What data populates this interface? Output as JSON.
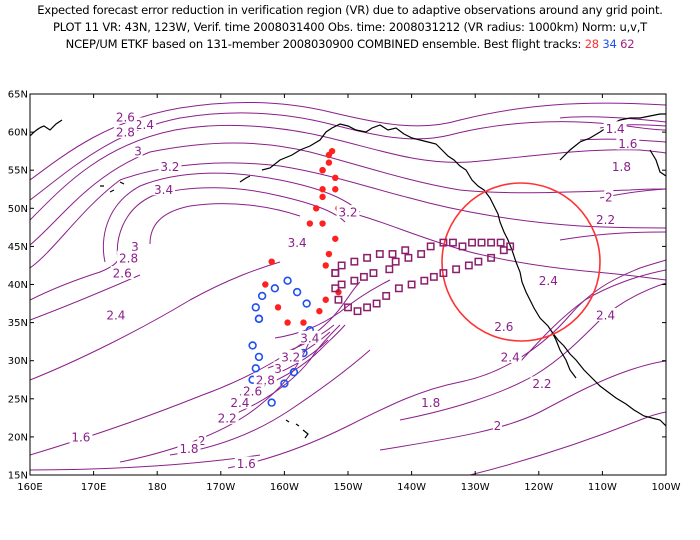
{
  "header": {
    "line1": "Expected forecast error reduction in verification region (VR) due to adaptive observations around any grid point.",
    "line2": "PLOT 11 VR: 43N, 123W, Verif. time 2008031400 Obs. time: 2008031212 (VR radius: 1000km) Norm: u,v,T",
    "line3_prefix": "NCEP/UM ETKF based on 131-member 2008030900 COMBINED ensemble.  Best flight tracks:",
    "track_red": "28",
    "track_blue": "34",
    "track_purple": "62"
  },
  "map": {
    "lon_min": 160,
    "lon_max": 260,
    "lat_min": 15,
    "lat_max": 65,
    "lat_labels": [
      "65N",
      "60N",
      "55N",
      "50N",
      "45N",
      "40N",
      "35N",
      "30N",
      "25N",
      "20N",
      "15N"
    ],
    "lon_labels": [
      "160E",
      "170E",
      "180",
      "170W",
      "160W",
      "150W",
      "140W",
      "130W",
      "120W",
      "110W",
      "100W"
    ],
    "colors": {
      "contour": "#8b1f8b",
      "vr_circle": "#ff3333",
      "red_track": "#ff2020",
      "blue_track": "#2050f0",
      "purple_track": "#8b1f6b",
      "land": "#000000"
    },
    "verification_region": {
      "center_lat": 43,
      "center_lon": 237,
      "radius_km": 1000
    },
    "contour_labels": [
      {
        "text": "2.4",
        "lon": 178,
        "lat": 61
      },
      {
        "text": "2.6",
        "lon": 175,
        "lat": 62
      },
      {
        "text": "2.8",
        "lon": 175,
        "lat": 60
      },
      {
        "text": "3",
        "lon": 177,
        "lat": 57.5
      },
      {
        "text": "3.2",
        "lon": 182,
        "lat": 55.5
      },
      {
        "text": "3.4",
        "lon": 181,
        "lat": 52.5
      },
      {
        "text": "3.2",
        "lon": 210,
        "lat": 49.5
      },
      {
        "text": "3.4",
        "lon": 202,
        "lat": 45.5
      },
      {
        "text": "3",
        "lon": 176.5,
        "lat": 45
      },
      {
        "text": "2.8",
        "lon": 175.5,
        "lat": 43.5
      },
      {
        "text": "2.6",
        "lon": 174.5,
        "lat": 41.5
      },
      {
        "text": "2.4",
        "lon": 173.5,
        "lat": 36
      },
      {
        "text": "3.4",
        "lon": 204,
        "lat": 33
      },
      {
        "text": "3.2",
        "lon": 201,
        "lat": 30.5
      },
      {
        "text": "3",
        "lon": 199,
        "lat": 29
      },
      {
        "text": "2.8",
        "lon": 197,
        "lat": 27.5
      },
      {
        "text": "2.6",
        "lon": 195,
        "lat": 26
      },
      {
        "text": "2.4",
        "lon": 193,
        "lat": 24.5
      },
      {
        "text": "2.2",
        "lon": 191,
        "lat": 22.5
      },
      {
        "text": "2",
        "lon": 187,
        "lat": 19.5
      },
      {
        "text": "1.8",
        "lon": 185,
        "lat": 18.5
      },
      {
        "text": "1.6",
        "lon": 168,
        "lat": 20
      },
      {
        "text": "1.6",
        "lon": 194,
        "lat": 16.5
      },
      {
        "text": "1.8",
        "lon": 223,
        "lat": 24.5
      },
      {
        "text": "2",
        "lon": 233.5,
        "lat": 21.5
      },
      {
        "text": "2.2",
        "lon": 240.5,
        "lat": 27
      },
      {
        "text": "2.4",
        "lon": 235.5,
        "lat": 30.5
      },
      {
        "text": "2.6",
        "lon": 234.5,
        "lat": 34.5
      },
      {
        "text": "2.4",
        "lon": 241.5,
        "lat": 40.5
      },
      {
        "text": "2.4",
        "lon": 250.5,
        "lat": 36
      },
      {
        "text": "2.2",
        "lon": 250.5,
        "lat": 48.5
      },
      {
        "text": "2",
        "lon": 251,
        "lat": 51.5
      },
      {
        "text": "1.8",
        "lon": 253,
        "lat": 55.5
      },
      {
        "text": "1.6",
        "lon": 254,
        "lat": 58.5
      },
      {
        "text": "1.4",
        "lon": 252,
        "lat": 60.5
      }
    ],
    "red_track": [
      [
        207.5,
        57.5
      ],
      [
        207,
        56
      ],
      [
        206,
        55
      ],
      [
        208,
        54
      ],
      [
        208,
        52.5
      ],
      [
        206,
        51.5
      ],
      [
        208.5,
        50
      ],
      [
        206,
        48
      ],
      [
        208,
        46
      ],
      [
        207,
        44
      ],
      [
        206.5,
        42.5
      ],
      [
        208.5,
        39
      ],
      [
        206.5,
        38
      ],
      [
        205.5,
        36.5
      ],
      [
        203,
        35
      ],
      [
        200.5,
        35
      ],
      [
        199,
        37
      ],
      [
        197,
        40
      ],
      [
        198,
        43
      ],
      [
        202,
        46
      ],
      [
        204,
        48
      ],
      [
        205,
        50
      ],
      [
        206,
        52.5
      ],
      [
        206,
        55
      ],
      [
        207,
        57
      ]
    ],
    "blue_track": [
      [
        196,
        35.5
      ],
      [
        195,
        32
      ],
      [
        196,
        30.5
      ],
      [
        195.5,
        29
      ],
      [
        195,
        27.5
      ],
      [
        198,
        24.5
      ],
      [
        200,
        27
      ],
      [
        201.5,
        28.5
      ],
      [
        203,
        31
      ],
      [
        204,
        34
      ],
      [
        203.5,
        37.5
      ],
      [
        202,
        39
      ],
      [
        200.5,
        40.5
      ],
      [
        198.5,
        39.5
      ],
      [
        196.5,
        38.5
      ],
      [
        195.5,
        37
      ],
      [
        196,
        35.5
      ]
    ],
    "purple_track": [
      [
        208,
        41.5
      ],
      [
        209,
        40
      ],
      [
        211,
        40.5
      ],
      [
        212.5,
        41
      ],
      [
        214,
        41.5
      ],
      [
        216.5,
        42
      ],
      [
        217.5,
        43
      ],
      [
        219.5,
        43.5
      ],
      [
        221.5,
        44
      ],
      [
        223,
        45
      ],
      [
        225,
        45.5
      ],
      [
        226.5,
        45.5
      ],
      [
        228,
        45
      ],
      [
        229.5,
        45.5
      ],
      [
        231,
        45.5
      ],
      [
        232.5,
        45.5
      ],
      [
        234,
        45.5
      ],
      [
        235.5,
        45
      ],
      [
        234.5,
        44.5
      ],
      [
        232.5,
        43.5
      ],
      [
        230.5,
        43
      ],
      [
        229,
        42.5
      ],
      [
        227,
        42
      ],
      [
        225,
        41.5
      ],
      [
        223.5,
        41
      ],
      [
        222,
        40.5
      ],
      [
        220,
        40
      ],
      [
        218,
        39.5
      ],
      [
        216,
        38.5
      ],
      [
        214.5,
        37.5
      ],
      [
        213,
        37
      ],
      [
        211.5,
        36.5
      ],
      [
        210,
        37
      ],
      [
        208.5,
        38
      ],
      [
        208,
        39.5
      ],
      [
        208,
        41.5
      ],
      [
        209,
        42.5
      ],
      [
        211,
        43
      ],
      [
        213,
        43.5
      ],
      [
        215,
        44
      ],
      [
        217,
        44
      ],
      [
        219,
        44.5
      ]
    ]
  }
}
